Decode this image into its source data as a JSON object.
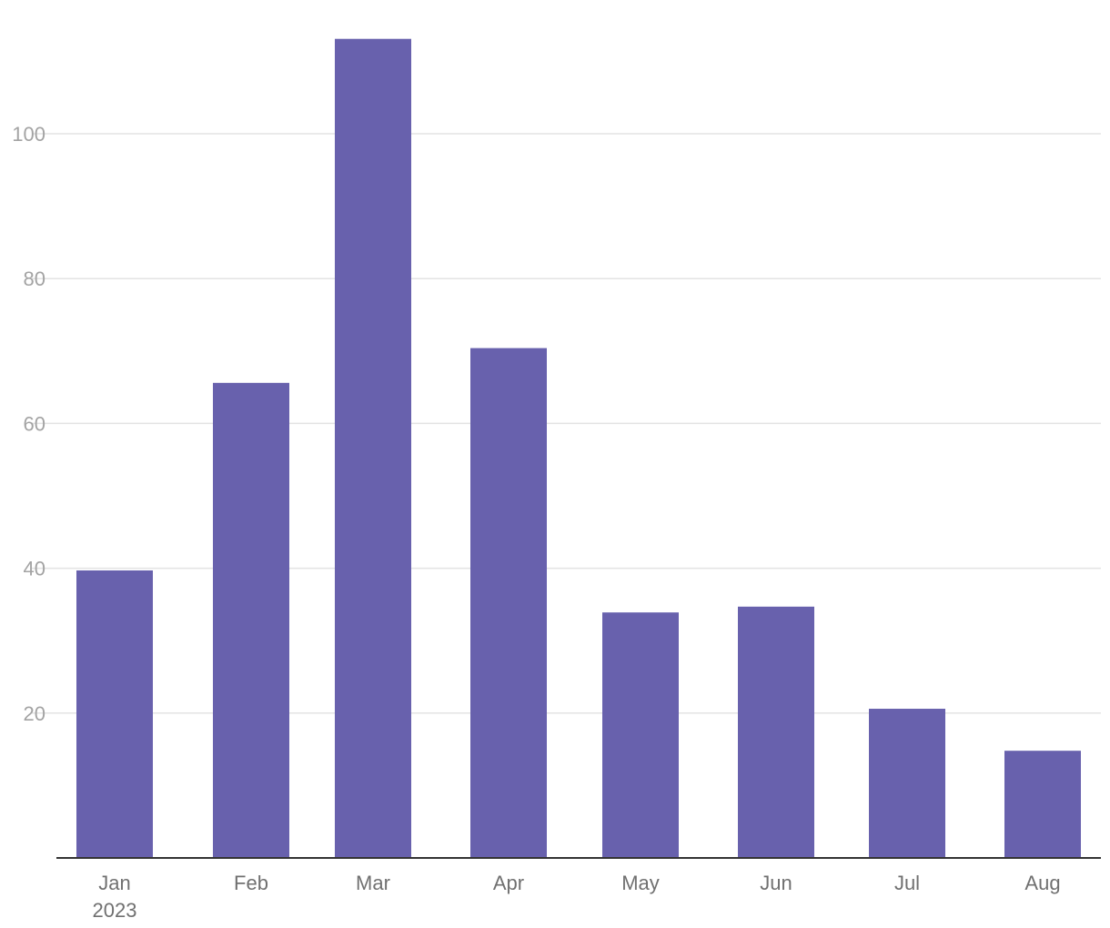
{
  "chart_data": {
    "type": "bar",
    "categories": [
      "Jan",
      "Feb",
      "Mar",
      "Apr",
      "May",
      "Jun",
      "Jul",
      "Aug"
    ],
    "x_sublabels": [
      "2023",
      "",
      "",
      "",
      "",
      "",
      "",
      ""
    ],
    "x_dates": [
      "2023-01",
      "2023-02",
      "2023-03",
      "2023-04",
      "2023-05",
      "2023-06",
      "2023-07",
      "2023-08"
    ],
    "values": [
      39.7,
      65.6,
      113.1,
      70.4,
      33.9,
      34.7,
      20.6,
      14.8
    ],
    "yticks": [
      20,
      40,
      60,
      80,
      100
    ],
    "ylim": [
      0,
      115
    ],
    "grid": true,
    "title": "",
    "xlabel": "",
    "ylabel": "",
    "bar_color": "#6861ad",
    "grid_color": "#e3e3e3",
    "axis_color": "#333333"
  }
}
